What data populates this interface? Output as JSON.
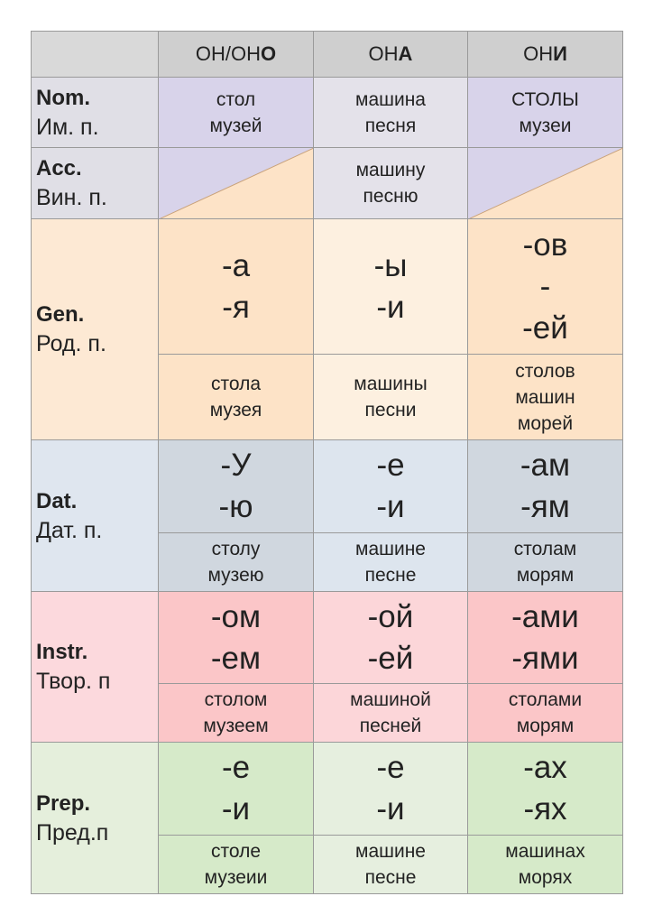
{
  "header": [
    {
      "plain": "ОН/ОН",
      "bold": "О"
    },
    {
      "plain": "ОН",
      "bold": "А"
    },
    {
      "plain": "ОН",
      "bold": "И"
    }
  ],
  "rows": [
    {
      "case": "Nom.",
      "ru": "Им. п.",
      "examples": [
        [
          "стол",
          "музей"
        ],
        [
          "машина",
          "песня"
        ],
        [
          "СТОЛЫ",
          "музеи"
        ]
      ]
    },
    {
      "case": "Acc.",
      "ru": "Вин. п.",
      "example": [
        "машину",
        "песню"
      ]
    },
    {
      "case": "Gen.",
      "ru": "Род. п.",
      "endings": [
        [
          "-а",
          "-я"
        ],
        [
          "-ы",
          "-и"
        ],
        [
          "-ов",
          "-",
          "-ей"
        ]
      ],
      "examples": [
        [
          "стола",
          "музея"
        ],
        [
          "машины",
          "песни"
        ],
        [
          "столов",
          "машин",
          "морей"
        ]
      ]
    },
    {
      "case": "Dat.",
      "ru": "Дат. п.",
      "endings": [
        [
          "-У",
          "-ю"
        ],
        [
          "-е",
          "-и"
        ],
        [
          "-ам",
          "-ям"
        ]
      ],
      "examples": [
        [
          "столу",
          "музею"
        ],
        [
          "машине",
          "песне"
        ],
        [
          "столам",
          "морям"
        ]
      ]
    },
    {
      "case": "Instr.",
      "ru": "Твор. п",
      "endings": [
        [
          "-ом",
          "-ем"
        ],
        [
          "-ой",
          "-ей"
        ],
        [
          "-ами",
          "-ями"
        ]
      ],
      "examples": [
        [
          "столом",
          "музеем"
        ],
        [
          "машиной",
          "песней"
        ],
        [
          "столами",
          "морям"
        ]
      ]
    },
    {
      "case": "Prep.",
      "ru": "Пред.п",
      "endings": [
        [
          "-е",
          "-и"
        ],
        [
          "-е",
          "-и"
        ],
        [
          "-ах",
          "-ях"
        ]
      ],
      "examples": [
        [
          "столе",
          "музеии"
        ],
        [
          "машине",
          "песне"
        ],
        [
          "машинах",
          "морях"
        ]
      ]
    }
  ]
}
